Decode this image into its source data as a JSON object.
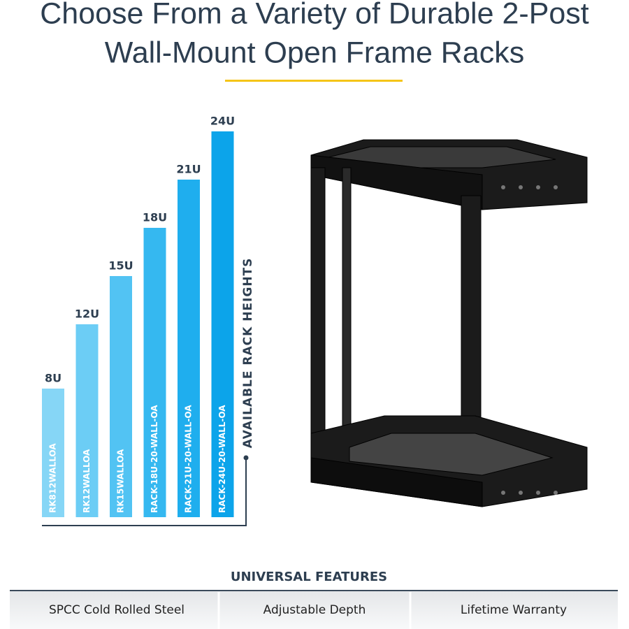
{
  "header": {
    "title_lines": [
      "Choose From a Variety of Durable 2-Post",
      "Wall-Mount Open Frame Racks"
    ]
  },
  "chart_data": {
    "type": "bar",
    "axis_label": "AVAILABLE RACK HEIGHTS",
    "categories": [
      "RK812WALLOA",
      "RK12WALLOA",
      "RK15WALLOA",
      "RACK-18U-20-WALL-OA",
      "RACK-21U-20-WALL-OA",
      "RACK-24U-20-WALL-OA"
    ],
    "values": [
      8,
      12,
      15,
      18,
      21,
      24
    ],
    "value_labels": [
      "8U",
      "12U",
      "15U",
      "18U",
      "21U",
      "24U"
    ],
    "colors": [
      "#86d6f6",
      "#6ccdf5",
      "#52c3f3",
      "#35b8f0",
      "#1faeee",
      "#0ca4ea"
    ]
  },
  "features": {
    "title": "UNIVERSAL FEATURES",
    "items": [
      "SPCC Cold Rolled Steel",
      "Adjustable Depth",
      "Lifetime Warranty"
    ]
  }
}
